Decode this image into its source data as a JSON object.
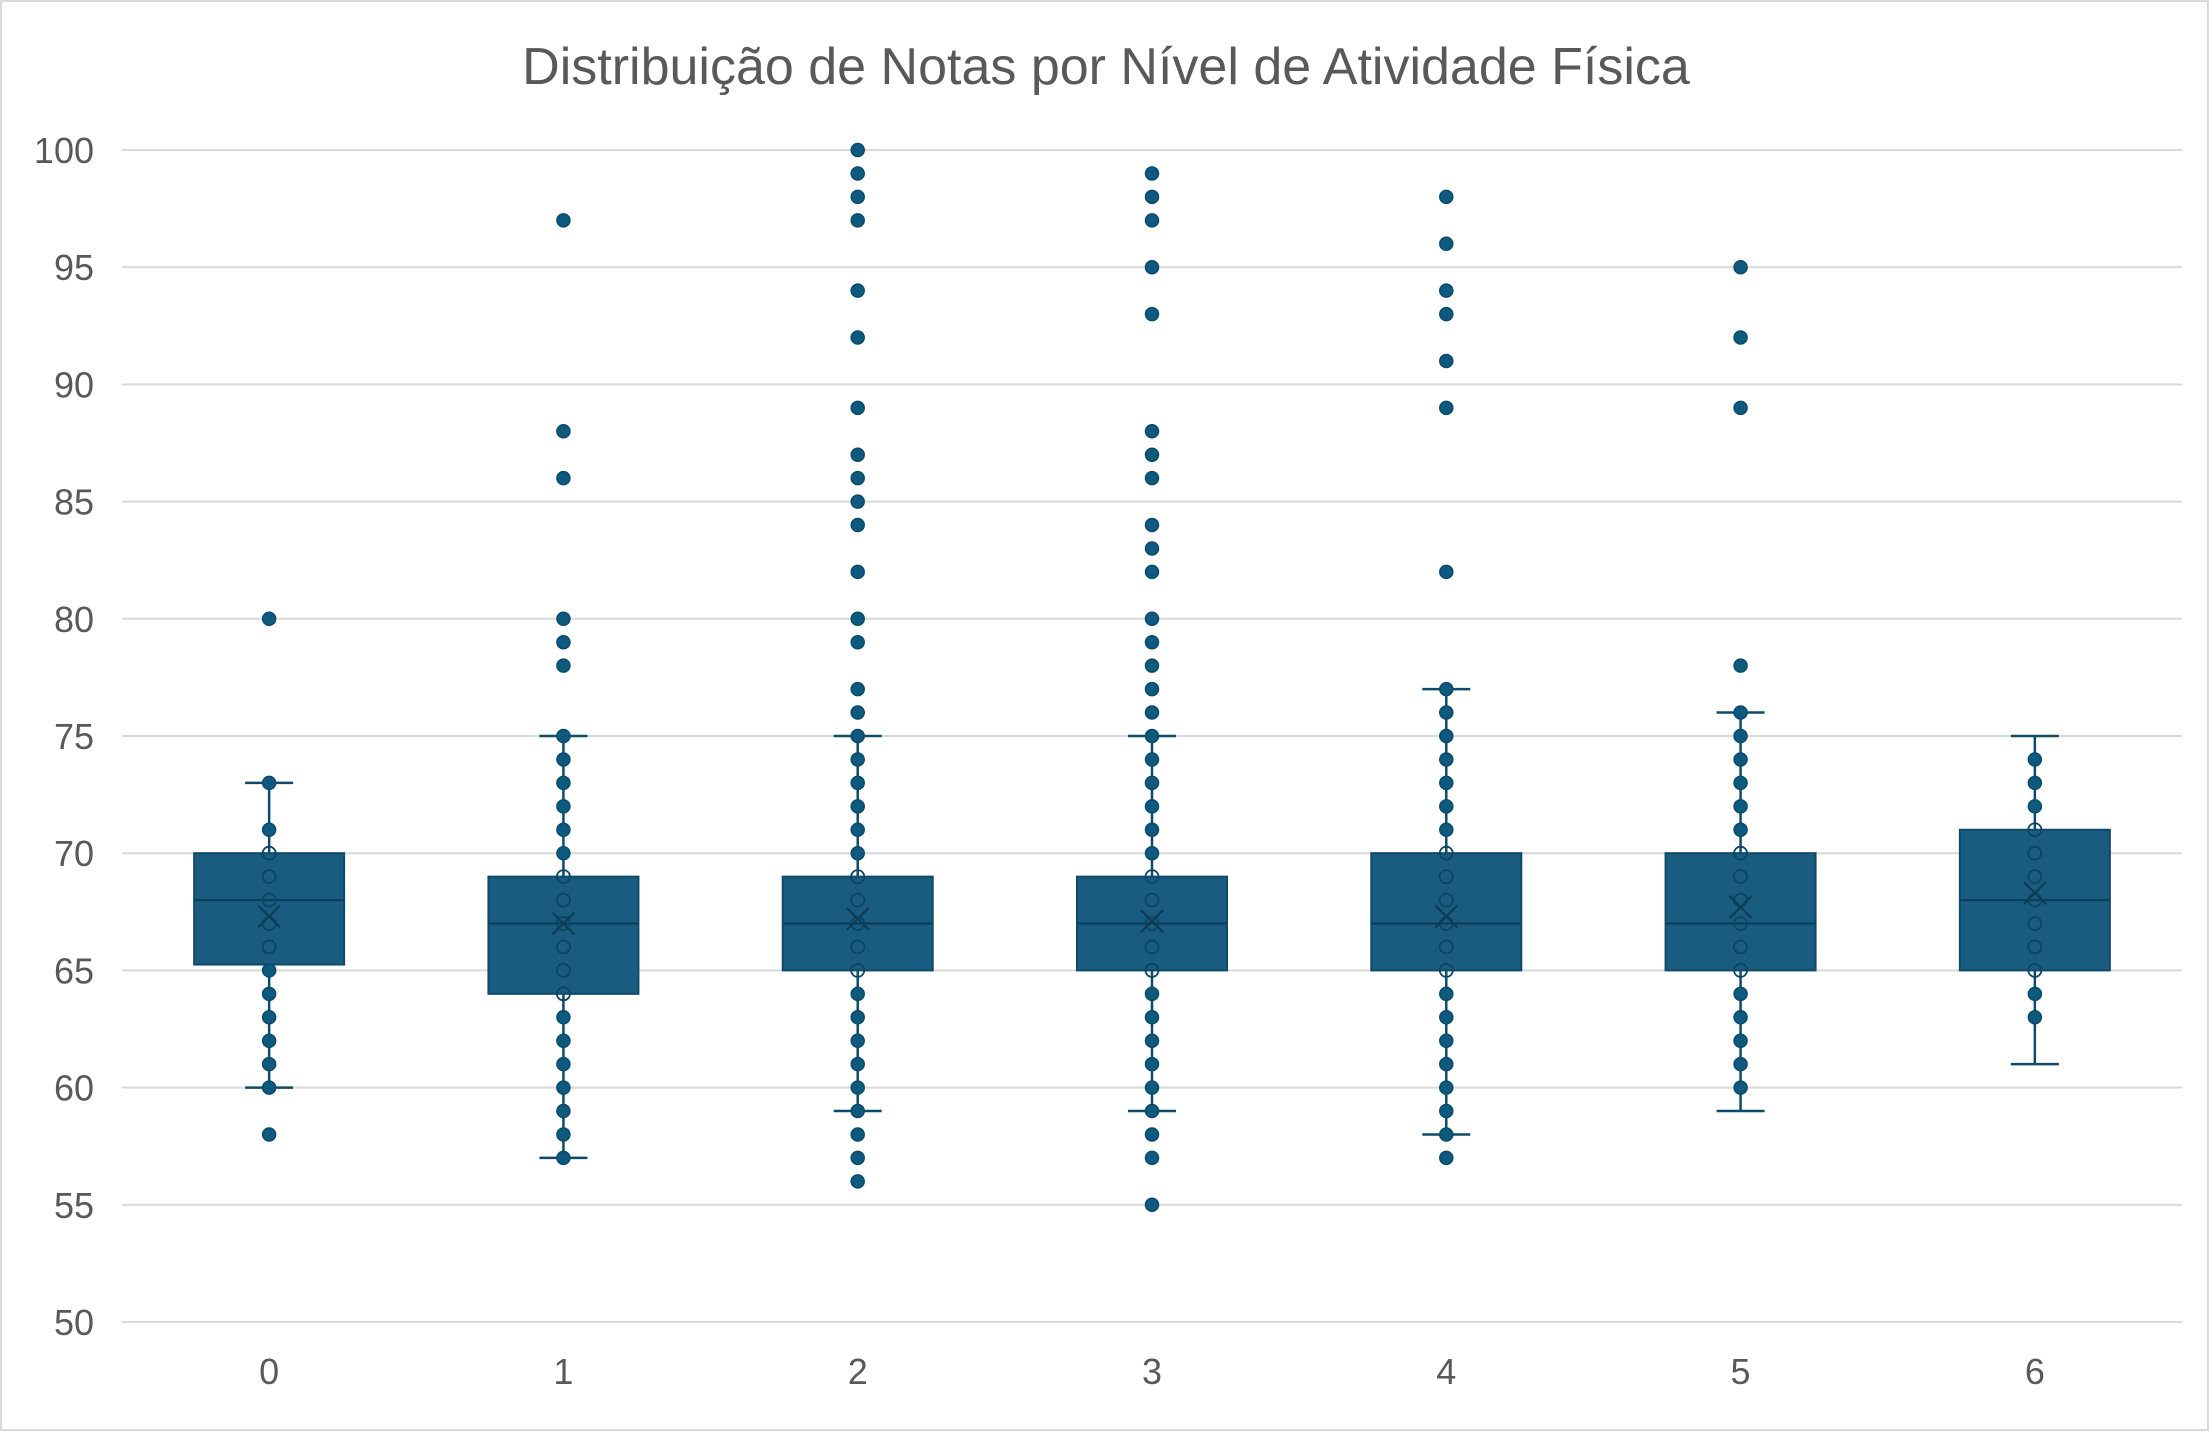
{
  "chart_data": {
    "type": "box",
    "title": "Distribuição de Notas por Nível de Atividade Física",
    "xlabel": "",
    "ylabel": "",
    "ylim": [
      50,
      100
    ],
    "yticks": [
      50,
      55,
      60,
      65,
      70,
      75,
      80,
      85,
      90,
      95,
      100
    ],
    "grid": true,
    "legend": "none",
    "colors": {
      "box_fill": "#1a5c80",
      "box_edge": "#0e4a69",
      "point": "#0e5a7e",
      "grid": "#d9d9d9"
    },
    "categories": [
      "0",
      "1",
      "2",
      "3",
      "4",
      "5",
      "6"
    ],
    "boxes": [
      {
        "category": "0",
        "whisker_low": 60,
        "q1": 65.25,
        "median": 68,
        "q3": 70,
        "whisker_high": 73,
        "mean": 67.3,
        "points": [
          58,
          60,
          61,
          62,
          63,
          64,
          65,
          66,
          67,
          68,
          69,
          70,
          71,
          73,
          80
        ]
      },
      {
        "category": "1",
        "whisker_low": 57,
        "q1": 64,
        "median": 67,
        "q3": 69,
        "whisker_high": 75,
        "mean": 67,
        "points": [
          57,
          58,
          59,
          60,
          61,
          62,
          63,
          64,
          65,
          66,
          67,
          68,
          69,
          70,
          71,
          72,
          73,
          74,
          75,
          78,
          79,
          80,
          86,
          88,
          97
        ]
      },
      {
        "category": "2",
        "whisker_low": 59,
        "q1": 65,
        "median": 67,
        "q3": 69,
        "whisker_high": 75,
        "mean": 67.2,
        "points": [
          56,
          57,
          58,
          59,
          60,
          61,
          62,
          63,
          64,
          65,
          66,
          67,
          68,
          69,
          70,
          71,
          72,
          73,
          74,
          75,
          76,
          77,
          79,
          80,
          82,
          84,
          85,
          86,
          87,
          89,
          92,
          94,
          97,
          98,
          99,
          100
        ]
      },
      {
        "category": "3",
        "whisker_low": 59,
        "q1": 65,
        "median": 67,
        "q3": 69,
        "whisker_high": 75,
        "mean": 67.1,
        "points": [
          55,
          57,
          58,
          59,
          60,
          61,
          62,
          63,
          64,
          65,
          66,
          67,
          68,
          69,
          70,
          71,
          72,
          73,
          74,
          75,
          76,
          77,
          78,
          79,
          80,
          82,
          83,
          84,
          86,
          87,
          88,
          93,
          95,
          97,
          98,
          99
        ]
      },
      {
        "category": "4",
        "whisker_low": 58,
        "q1": 65,
        "median": 67,
        "q3": 70,
        "whisker_high": 77,
        "mean": 67.3,
        "points": [
          57,
          58,
          59,
          60,
          61,
          62,
          63,
          64,
          65,
          66,
          67,
          68,
          69,
          70,
          71,
          72,
          73,
          74,
          75,
          76,
          77,
          82,
          89,
          91,
          93,
          94,
          96,
          98
        ]
      },
      {
        "category": "5",
        "whisker_low": 59,
        "q1": 65,
        "median": 67,
        "q3": 70,
        "whisker_high": 76,
        "mean": 67.7,
        "points": [
          60,
          61,
          62,
          63,
          64,
          65,
          66,
          67,
          68,
          69,
          70,
          71,
          72,
          73,
          74,
          75,
          76,
          78,
          89,
          92,
          95
        ]
      },
      {
        "category": "6",
        "whisker_low": 61,
        "q1": 65,
        "median": 68,
        "q3": 71,
        "whisker_high": 75,
        "mean": 68.3,
        "points": [
          63,
          64,
          65,
          66,
          67,
          68,
          69,
          70,
          71,
          72,
          73,
          74
        ]
      }
    ]
  }
}
